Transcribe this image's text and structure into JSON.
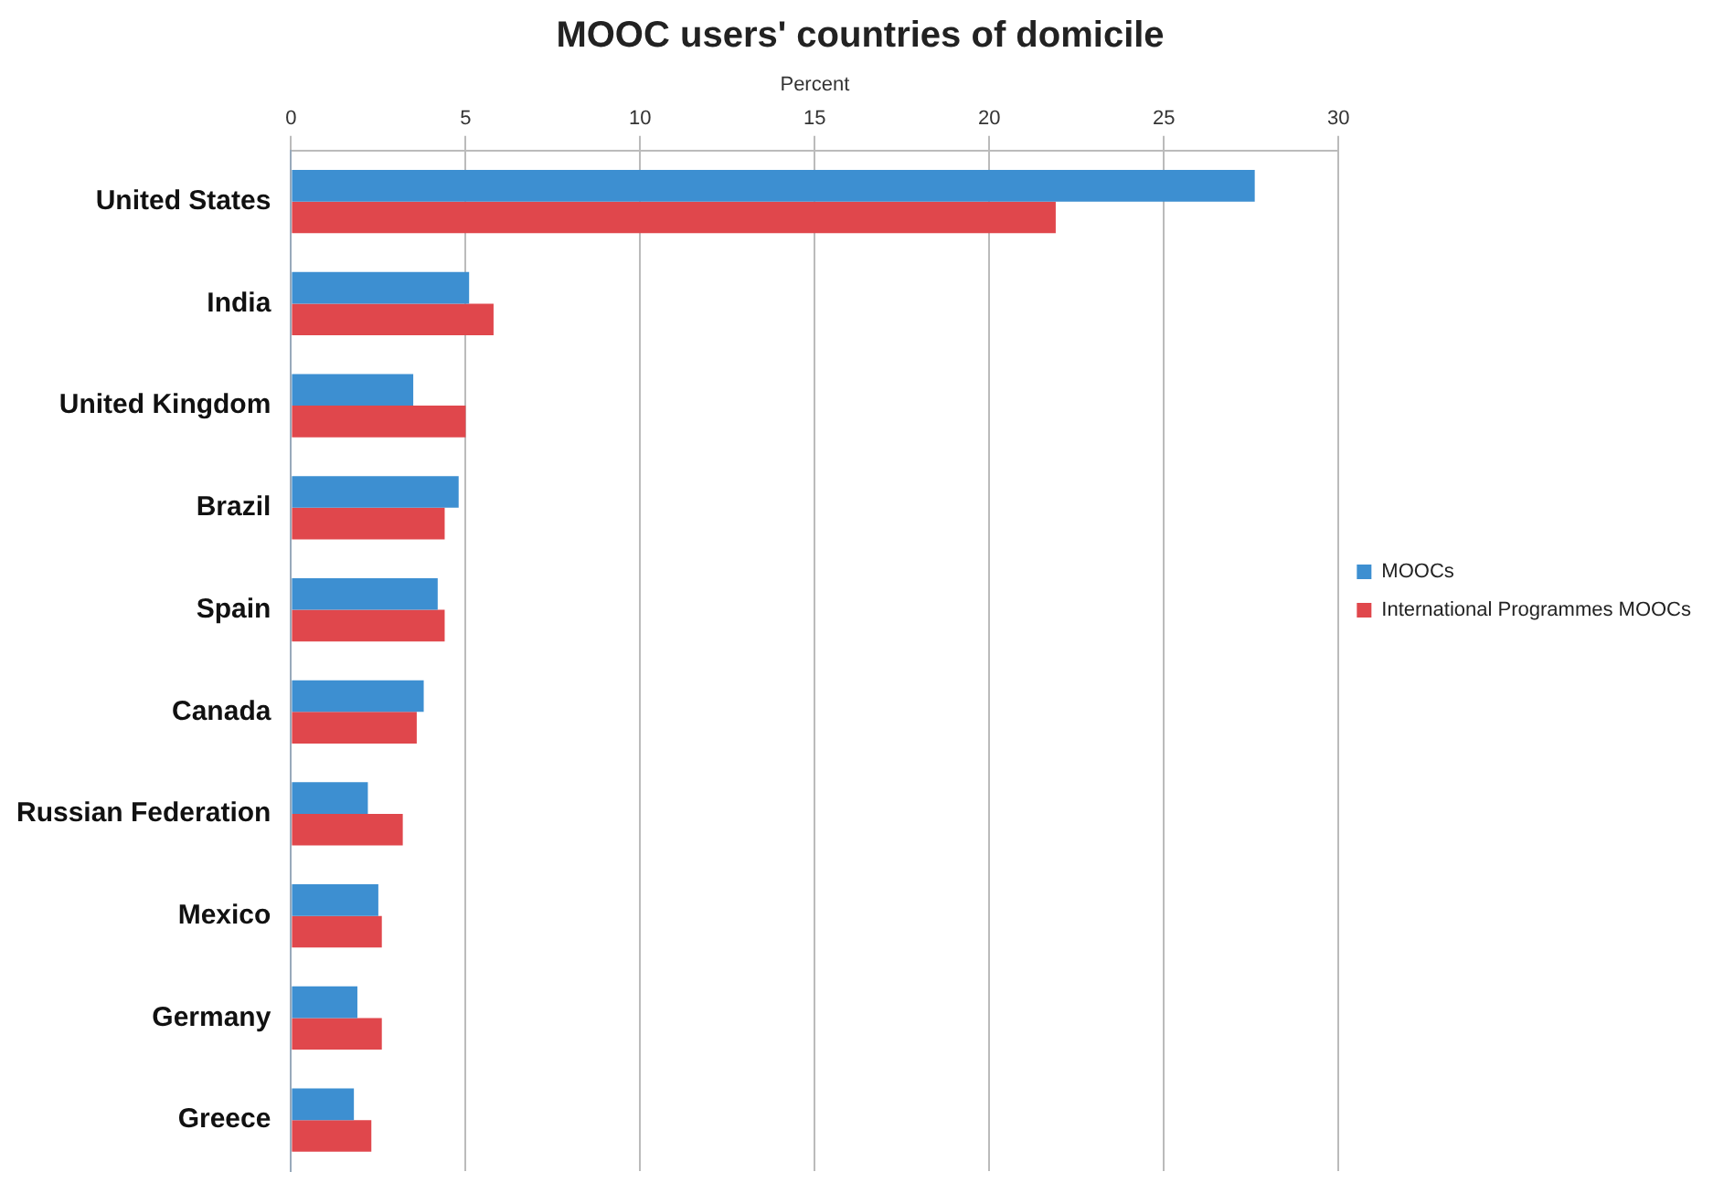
{
  "chart_data": {
    "type": "bar",
    "orientation": "horizontal",
    "title": "MOOC users' countries of domicile",
    "xlabel": "Percent",
    "categories": [
      "United States",
      "India",
      "United Kingdom",
      "Brazil",
      "Spain",
      "Canada",
      "Russian Federation",
      "Mexico",
      "Germany",
      "Greece"
    ],
    "series": [
      {
        "name": "MOOCs",
        "color": "#3d8fd1",
        "values": [
          27.6,
          5.1,
          3.5,
          4.8,
          4.2,
          3.8,
          2.2,
          2.5,
          1.9,
          1.8
        ]
      },
      {
        "name": "International Programmes MOOCs",
        "color": "#e0474c",
        "values": [
          21.9,
          5.8,
          5.0,
          4.4,
          4.4,
          3.6,
          3.2,
          2.6,
          2.6,
          2.3
        ]
      }
    ],
    "xlim": [
      0,
      30
    ],
    "xticks": [
      0,
      5,
      10,
      15,
      20,
      25,
      30
    ],
    "grid": "x",
    "legend": "right"
  }
}
